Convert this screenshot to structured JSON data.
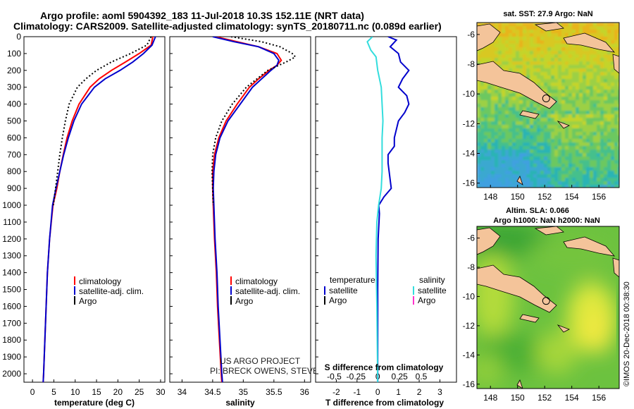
{
  "figure": {
    "title_line1": "Argo profile: aoml 5904392_183 11-Jul-2018 10.3S 152.11E (NRT data)",
    "title_line2": "Climatology: CARS2009. Satellite-adjusted climatology: synTS_20180711.nc (0.089d earlier)",
    "side_label": "©IMOS 20-Dec-2018 00:38:30",
    "credit_line1": "US ARGO PROJECT",
    "credit_line2": "PI: BRECK OWENS, STEVE JAYNE, P.E. ROBBINS"
  },
  "colors": {
    "climatology": "#ff0000",
    "satellite": "#0000cc",
    "argo": "#000000",
    "satellite_salinity": "#33dddd",
    "argo_salinity": "#ff33cc",
    "land": "#f4c49a",
    "map_border": "#000000"
  },
  "chart_data": [
    {
      "id": "temperature",
      "type": "line",
      "xlabel": "temperature (deg C)",
      "ylabel": "",
      "xlim": [
        -2,
        31
      ],
      "ylim": [
        2050,
        0
      ],
      "x_ticks": [
        0,
        5,
        10,
        15,
        20,
        25,
        30
      ],
      "y_ticks": [
        0,
        100,
        200,
        300,
        400,
        500,
        600,
        700,
        800,
        900,
        1000,
        1100,
        1200,
        1300,
        1400,
        1500,
        1600,
        1700,
        1800,
        1900,
        2000
      ],
      "legend": [
        "climatology",
        "satellite-adj. clim.",
        "Argo"
      ],
      "series": [
        {
          "name": "climatology",
          "style": "solid",
          "color_key": "climatology",
          "depth": [
            0,
            50,
            100,
            150,
            200,
            250,
            300,
            400,
            500,
            600,
            700,
            800,
            900,
            1000,
            1200,
            1400,
            1600,
            1800,
            2000,
            2050
          ],
          "values": [
            28.2,
            27.8,
            25.0,
            21.8,
            18.5,
            15.6,
            13.5,
            10.9,
            9.3,
            8.1,
            7.2,
            6.4,
            5.7,
            4.8,
            4.0,
            3.5,
            3.2,
            2.9,
            2.6,
            2.5
          ]
        },
        {
          "name": "satellite-adj. clim.",
          "style": "solid",
          "color_key": "satellite",
          "depth": [
            0,
            50,
            100,
            150,
            200,
            250,
            300,
            400,
            500,
            600,
            700,
            800,
            900,
            1000,
            1200,
            1400,
            1600,
            1800,
            2000,
            2050
          ],
          "values": [
            28.8,
            28.0,
            26.0,
            23.5,
            20.5,
            17.0,
            14.5,
            11.5,
            9.7,
            8.4,
            7.3,
            6.4,
            5.5,
            4.7,
            4.0,
            3.5,
            3.2,
            2.9,
            2.6,
            2.5
          ]
        },
        {
          "name": "Argo",
          "style": "dotted",
          "color_key": "argo",
          "depth": [
            0,
            50,
            100,
            150,
            200,
            250,
            300,
            400,
            500,
            600,
            700,
            800,
            900,
            1000
          ],
          "values": [
            27.8,
            26.8,
            23.0,
            18.5,
            15.0,
            12.5,
            10.5,
            8.6,
            7.7,
            7.0,
            6.4,
            5.9,
            5.4,
            4.9
          ]
        }
      ]
    },
    {
      "id": "salinity",
      "type": "line",
      "xlabel": "salinity",
      "ylabel": "",
      "xlim": [
        33.8,
        36.1
      ],
      "ylim": [
        2050,
        0
      ],
      "x_ticks": [
        34,
        34.5,
        35,
        35.5,
        36
      ],
      "x_tick_labels": [
        "34",
        "34.5",
        "35",
        "35.5",
        "36"
      ],
      "legend": [
        "climatology",
        "satellite-adj. clim.",
        "Argo"
      ],
      "series": [
        {
          "name": "climatology",
          "style": "solid",
          "color_key": "climatology",
          "depth": [
            0,
            30,
            60,
            100,
            140,
            170,
            200,
            250,
            300,
            400,
            500,
            600,
            700,
            800,
            900,
            1000,
            1200,
            1400,
            1600,
            1800,
            2000,
            2050
          ],
          "values": [
            34.55,
            34.9,
            35.25,
            35.55,
            35.62,
            35.55,
            35.42,
            35.25,
            35.1,
            34.9,
            34.72,
            34.6,
            34.53,
            34.5,
            34.5,
            34.51,
            34.53,
            34.56,
            34.58,
            34.61,
            34.64,
            34.65
          ]
        },
        {
          "name": "satellite-adj. clim.",
          "style": "solid",
          "color_key": "satellite",
          "depth": [
            0,
            30,
            60,
            100,
            140,
            170,
            200,
            250,
            300,
            400,
            500,
            600,
            700,
            800,
            900,
            1000,
            1200,
            1400,
            1600,
            1800,
            2000,
            2050
          ],
          "values": [
            34.5,
            34.85,
            35.25,
            35.5,
            35.58,
            35.55,
            35.45,
            35.3,
            35.15,
            34.95,
            34.75,
            34.62,
            34.55,
            34.52,
            34.51,
            34.52,
            34.54,
            34.57,
            34.59,
            34.62,
            34.65,
            34.66
          ]
        },
        {
          "name": "Argo",
          "style": "dotted",
          "color_key": "argo",
          "depth": [
            0,
            30,
            60,
            100,
            120,
            150,
            200,
            300,
            400,
            500,
            600,
            700,
            800,
            900,
            1000
          ],
          "values": [
            34.8,
            35.3,
            35.6,
            35.8,
            35.85,
            35.7,
            35.4,
            35.05,
            34.82,
            34.65,
            34.55,
            34.5,
            34.49,
            34.5,
            34.51
          ]
        }
      ]
    },
    {
      "id": "difference",
      "type": "line",
      "xlabel": "T difference from climatology",
      "x2label": "S difference from climatology",
      "xlim": [
        -3,
        3.8
      ],
      "ylim": [
        2050,
        0
      ],
      "x_ticks": [
        -2,
        -1,
        0,
        1,
        2,
        3
      ],
      "x2_ticks": [
        -0.5,
        -0.25,
        0,
        0.25,
        0.5
      ],
      "x2_tick_labels": [
        "-0.5",
        "-0.25",
        "0",
        "0.25",
        "0.5"
      ],
      "legend_left_title": "temperature",
      "legend_right_title": "salinity",
      "legend_left": [
        "satellite",
        "Argo"
      ],
      "legend_right": [
        "satellite",
        "Argo"
      ],
      "series": [
        {
          "name": "temperature satellite",
          "style": "solid",
          "color_key": "satellite",
          "depth": [
            0,
            20,
            60,
            100,
            150,
            200,
            250,
            300,
            350,
            400,
            450,
            500,
            600,
            650,
            700,
            750,
            800,
            850,
            900,
            950,
            1000,
            1050,
            1200,
            1500,
            2050
          ],
          "values": [
            0.5,
            0.9,
            0.6,
            1.0,
            1.1,
            1.5,
            1.2,
            1.0,
            1.4,
            1.5,
            1.3,
            1.0,
            0.8,
            0.8,
            0.5,
            0.5,
            0.55,
            0.6,
            0.65,
            0.3,
            0.05,
            0.08,
            0.02,
            0.0,
            0.0
          ]
        },
        {
          "name": "salinity satellite",
          "style": "solid",
          "color_key": "satellite_salinity",
          "depth": [
            0,
            30,
            80,
            120,
            200,
            300,
            400,
            500,
            600,
            700,
            800,
            900,
            1000,
            1100,
            1300,
            1600,
            2050
          ],
          "values": [
            -0.06,
            -0.12,
            -0.08,
            -0.02,
            0.0,
            0.04,
            0.05,
            0.06,
            0.05,
            0.05,
            0.05,
            0.04,
            0.01,
            -0.01,
            -0.02,
            -0.01,
            0.0
          ]
        }
      ]
    },
    {
      "id": "sst_map",
      "type": "heatmap",
      "title": "sat. SST: 27.9 Argo: NaN",
      "x_ticks": [
        148,
        150,
        152,
        154,
        156
      ],
      "y_ticks": [
        -6,
        -8,
        -10,
        -12,
        -14,
        -16
      ],
      "xlim": [
        147,
        157.5
      ],
      "ylim": [
        -16.3,
        -5.2
      ],
      "argo_position": [
        152.11,
        -10.3
      ]
    },
    {
      "id": "sla_map",
      "type": "heatmap",
      "title_line1": "Altim. SLA: 0.066",
      "title_line2": "Argo h1000: NaN h2000: NaN",
      "x_ticks": [
        148,
        150,
        152,
        154,
        156
      ],
      "y_ticks": [
        -6,
        -8,
        -10,
        -12,
        -14,
        -16
      ],
      "xlim": [
        147,
        157.5
      ],
      "ylim": [
        -16.3,
        -5.2
      ],
      "argo_position": [
        152.11,
        -10.3
      ]
    }
  ]
}
